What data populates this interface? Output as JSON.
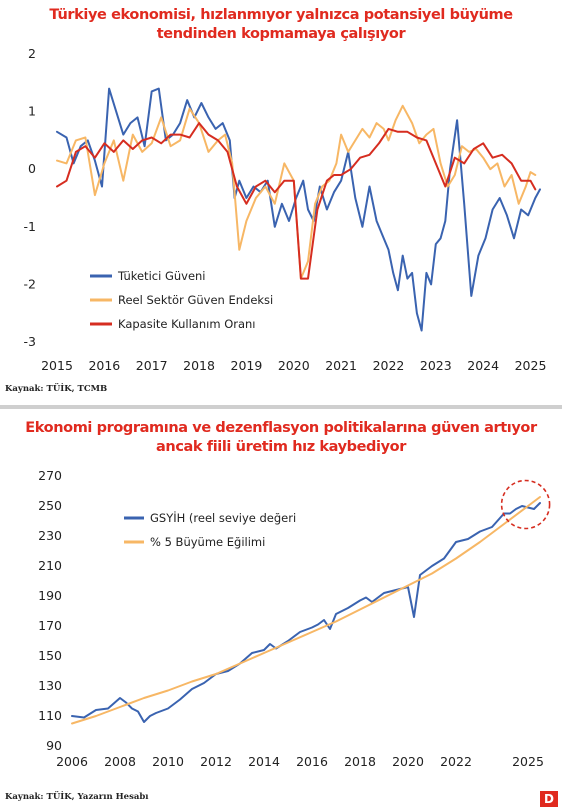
{
  "charts": [
    {
      "title_line1": "Türkiye ekonomisi, hızlanmıyor yalnızca potansiyel büyüme",
      "title_line2": "tendinden kopmamaya çalışıyor",
      "source": "Kaynak: TÜİK, TCMB"
    },
    {
      "title_line1": "Ekonomi programına ve dezenflasyon politikalarına güven artıyor",
      "title_line2": "ancak fiili üretim hız kaybediyor",
      "source": "Kaynak: TÜİK, Yazarın Hesabı"
    }
  ],
  "logo": "D",
  "colors": {
    "blue": "#3a63b0",
    "orange": "#f7b765",
    "red": "#d62d20",
    "title": "#e02a1f"
  },
  "chart_data": [
    {
      "type": "line",
      "ylim": [
        -3,
        2
      ],
      "y_ticks": [
        2,
        1,
        0,
        -1,
        -2,
        -3
      ],
      "x_ticks": [
        2015,
        2016,
        2017,
        2018,
        2019,
        2020,
        2021,
        2022,
        2023,
        2024,
        2025
      ],
      "xlim": [
        2015,
        2025.2
      ],
      "grid": false,
      "legend_position": "lower-left",
      "series": [
        {
          "name": "Tüketici Güveni",
          "color": "#3a63b0",
          "x": [
            2015.0,
            2015.2,
            2015.35,
            2015.5,
            2015.65,
            2015.8,
            2015.95,
            2016.1,
            2016.25,
            2016.4,
            2016.55,
            2016.7,
            2016.85,
            2017.0,
            2017.15,
            2017.3,
            2017.45,
            2017.6,
            2017.75,
            2017.9,
            2018.05,
            2018.2,
            2018.35,
            2018.5,
            2018.65,
            2018.75,
            2018.85,
            2019.0,
            2019.15,
            2019.3,
            2019.45,
            2019.6,
            2019.75,
            2019.9,
            2020.05,
            2020.2,
            2020.3,
            2020.42,
            2020.55,
            2020.7,
            2020.85,
            2021.0,
            2021.15,
            2021.3,
            2021.45,
            2021.6,
            2021.75,
            2021.9,
            2022.0,
            2022.1,
            2022.2,
            2022.3,
            2022.4,
            2022.5,
            2022.6,
            2022.7,
            2022.8,
            2022.9,
            2023.0,
            2023.1,
            2023.2,
            2023.3,
            2023.45,
            2023.6,
            2023.75,
            2023.9,
            2024.05,
            2024.2,
            2024.35,
            2024.5,
            2024.65,
            2024.8,
            2024.95,
            2025.1,
            2025.2
          ],
          "y": [
            0.65,
            0.55,
            0.1,
            0.4,
            0.5,
            0.15,
            -0.3,
            1.4,
            1.0,
            0.6,
            0.8,
            0.9,
            0.4,
            1.35,
            1.4,
            0.5,
            0.6,
            0.8,
            1.2,
            0.9,
            1.15,
            0.9,
            0.7,
            0.8,
            0.5,
            -0.5,
            -0.2,
            -0.5,
            -0.3,
            -0.4,
            -0.2,
            -1.0,
            -0.6,
            -0.9,
            -0.5,
            -0.2,
            -0.7,
            -0.9,
            -0.3,
            -0.7,
            -0.4,
            -0.2,
            0.3,
            -0.5,
            -1.0,
            -0.3,
            -0.9,
            -1.2,
            -1.4,
            -1.8,
            -2.1,
            -1.5,
            -1.9,
            -1.8,
            -2.5,
            -2.8,
            -1.8,
            -2.0,
            -1.3,
            -1.2,
            -0.9,
            0.0,
            0.85,
            -0.6,
            -2.2,
            -1.5,
            -1.2,
            -0.7,
            -0.5,
            -0.8,
            -1.2,
            -0.7,
            -0.8,
            -0.5,
            -0.35
          ]
        },
        {
          "name": "Reel Sektör Güven Endeksi",
          "color": "#f7b765",
          "x": [
            2015.0,
            2015.2,
            2015.4,
            2015.6,
            2015.8,
            2016.0,
            2016.2,
            2016.4,
            2016.6,
            2016.8,
            2017.0,
            2017.2,
            2017.4,
            2017.6,
            2017.8,
            2018.0,
            2018.2,
            2018.4,
            2018.55,
            2018.7,
            2018.85,
            2019.0,
            2019.2,
            2019.4,
            2019.6,
            2019.8,
            2020.0,
            2020.15,
            2020.3,
            2020.45,
            2020.6,
            2020.75,
            2020.9,
            2021.0,
            2021.15,
            2021.3,
            2021.45,
            2021.6,
            2021.75,
            2021.9,
            2022.0,
            2022.15,
            2022.3,
            2022.5,
            2022.65,
            2022.8,
            2022.95,
            2023.1,
            2023.25,
            2023.4,
            2023.55,
            2023.7,
            2023.85,
            2024.0,
            2024.15,
            2024.3,
            2024.45,
            2024.6,
            2024.75,
            2024.9,
            2025.0,
            2025.1
          ],
          "y": [
            0.15,
            0.1,
            0.5,
            0.55,
            -0.45,
            0.1,
            0.5,
            -0.2,
            0.6,
            0.3,
            0.45,
            0.9,
            0.4,
            0.5,
            1.05,
            0.8,
            0.3,
            0.5,
            0.6,
            0.1,
            -1.4,
            -0.9,
            -0.5,
            -0.3,
            -0.6,
            0.1,
            -0.2,
            -1.9,
            -1.6,
            -0.6,
            -0.3,
            -0.2,
            0.1,
            0.6,
            0.3,
            0.5,
            0.7,
            0.55,
            0.8,
            0.7,
            0.5,
            0.85,
            1.1,
            0.8,
            0.45,
            0.6,
            0.7,
            0.1,
            -0.3,
            -0.1,
            0.4,
            0.3,
            0.35,
            0.2,
            0.0,
            0.1,
            -0.3,
            -0.1,
            -0.6,
            -0.3,
            -0.05,
            -0.1
          ]
        },
        {
          "name": "Kapasite Kullanım Oranı",
          "color": "#d62d20",
          "x": [
            2015.0,
            2015.2,
            2015.4,
            2015.6,
            2015.8,
            2016.0,
            2016.2,
            2016.4,
            2016.6,
            2016.8,
            2017.0,
            2017.2,
            2017.4,
            2017.6,
            2017.8,
            2018.0,
            2018.2,
            2018.4,
            2018.6,
            2018.8,
            2019.0,
            2019.2,
            2019.4,
            2019.6,
            2019.8,
            2020.0,
            2020.15,
            2020.3,
            2020.5,
            2020.7,
            2020.85,
            2021.0,
            2021.2,
            2021.4,
            2021.6,
            2021.8,
            2022.0,
            2022.2,
            2022.4,
            2022.6,
            2022.8,
            2023.0,
            2023.2,
            2023.4,
            2023.6,
            2023.8,
            2024.0,
            2024.2,
            2024.4,
            2024.6,
            2024.8,
            2025.0,
            2025.1
          ],
          "y": [
            -0.3,
            -0.2,
            0.3,
            0.4,
            0.2,
            0.45,
            0.3,
            0.5,
            0.35,
            0.5,
            0.55,
            0.45,
            0.6,
            0.6,
            0.55,
            0.8,
            0.6,
            0.5,
            0.3,
            -0.3,
            -0.6,
            -0.3,
            -0.2,
            -0.4,
            -0.2,
            -0.2,
            -1.9,
            -1.9,
            -0.7,
            -0.2,
            -0.1,
            -0.1,
            0.0,
            0.2,
            0.25,
            0.45,
            0.7,
            0.65,
            0.65,
            0.55,
            0.5,
            0.1,
            -0.3,
            0.2,
            0.1,
            0.35,
            0.45,
            0.2,
            0.25,
            0.1,
            -0.2,
            -0.2,
            -0.35
          ]
        }
      ]
    },
    {
      "type": "line",
      "ylim": [
        90,
        270
      ],
      "y_ticks": [
        270,
        250,
        230,
        210,
        190,
        170,
        150,
        130,
        110,
        90
      ],
      "x_ticks": [
        2006,
        2008,
        2010,
        2012,
        2014,
        2016,
        2018,
        2020,
        2022,
        2025
      ],
      "xlim": [
        2006,
        2025.5
      ],
      "grid": false,
      "legend_position": "top-left",
      "annotation": "dashed red circle around latest GSYİH values (2024-2025)",
      "series": [
        {
          "name": "GSYİH (reel seviye değeri",
          "color": "#3a63b0",
          "x": [
            2006.0,
            2006.5,
            2007.0,
            2007.5,
            2008.0,
            2008.25,
            2008.5,
            2008.75,
            2009.0,
            2009.25,
            2009.5,
            2010.0,
            2010.5,
            2011.0,
            2011.5,
            2012.0,
            2012.5,
            2013.0,
            2013.5,
            2014.0,
            2014.25,
            2014.5,
            2015.0,
            2015.5,
            2016.0,
            2016.25,
            2016.5,
            2016.75,
            2017.0,
            2017.5,
            2018.0,
            2018.25,
            2018.5,
            2019.0,
            2019.5,
            2020.0,
            2020.25,
            2020.5,
            2021.0,
            2021.5,
            2022.0,
            2022.5,
            2023.0,
            2023.5,
            2024.0,
            2024.25,
            2024.5,
            2024.75,
            2025.0,
            2025.25,
            2025.5
          ],
          "y": [
            110,
            109,
            114,
            115,
            122,
            119,
            115,
            113,
            106,
            110,
            112,
            115,
            121,
            128,
            132,
            138,
            140,
            145,
            152,
            154,
            158,
            155,
            160,
            166,
            169,
            171,
            174,
            168,
            178,
            182,
            187,
            189,
            186,
            192,
            194,
            196,
            176,
            204,
            210,
            215,
            226,
            228,
            233,
            236,
            245,
            245,
            248,
            250,
            249,
            248,
            252
          ]
        },
        {
          "name": "% 5 Büyüme Eğilimi",
          "color": "#f7b765",
          "x": [
            2006,
            2007,
            2008,
            2009,
            2010,
            2011,
            2012,
            2013,
            2014,
            2015,
            2016,
            2017,
            2018,
            2019,
            2020,
            2021,
            2022,
            2023,
            2024,
            2025,
            2025.5
          ],
          "y": [
            105,
            110,
            116,
            122,
            127,
            133,
            138,
            145,
            152,
            159,
            166,
            173,
            181,
            189,
            197,
            205,
            215,
            226,
            238,
            250,
            256
          ]
        }
      ]
    }
  ]
}
